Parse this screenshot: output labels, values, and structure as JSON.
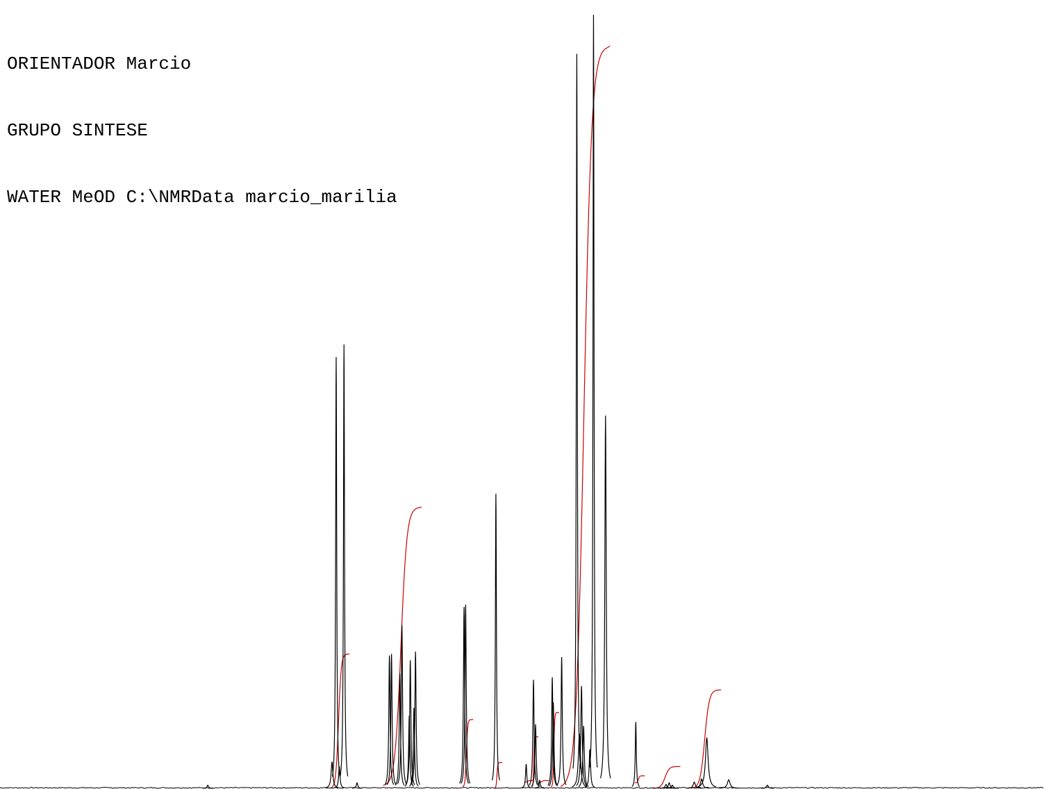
{
  "header": {
    "line1": "ORIENTADOR Marcio",
    "line2": "GRUPO SINTESE",
    "line3": "WATER MeOD C:\\NMRData marcio_marilia"
  },
  "colors": {
    "spectrum": "#000000",
    "integral": "#cc0000",
    "background": "#ffffff"
  },
  "chart_data": {
    "type": "line",
    "title": "",
    "xlabel": "",
    "ylabel": "",
    "xlim": [
      0,
      1
    ],
    "ylim": [
      0,
      1
    ],
    "grid": false,
    "legend": "none",
    "series": [
      {
        "peaks": [
          {
            "x": 0.199,
            "h": 0.004,
            "w": 0.0008
          },
          {
            "x": 0.318,
            "h": 0.034,
            "w": 0.001
          },
          {
            "x": 0.322,
            "h": 0.552,
            "w": 0.0006
          },
          {
            "x": 0.325,
            "h": 0.028,
            "w": 0.0008
          },
          {
            "x": 0.3295,
            "h": 0.568,
            "w": 0.0006
          },
          {
            "x": 0.342,
            "h": 0.007,
            "w": 0.0008
          },
          {
            "x": 0.373,
            "h": 0.17,
            "w": 0.0007
          },
          {
            "x": 0.375,
            "h": 0.172,
            "w": 0.0007
          },
          {
            "x": 0.383,
            "h": 0.147,
            "w": 0.0007
          },
          {
            "x": 0.385,
            "h": 0.209,
            "w": 0.0007
          },
          {
            "x": 0.392,
            "h": 0.093,
            "w": 0.0007
          },
          {
            "x": 0.393,
            "h": 0.164,
            "w": 0.0007
          },
          {
            "x": 0.3965,
            "h": 0.103,
            "w": 0.0007
          },
          {
            "x": 0.398,
            "h": 0.175,
            "w": 0.0007
          },
          {
            "x": 0.4445,
            "h": 0.232,
            "w": 0.0007
          },
          {
            "x": 0.446,
            "h": 0.235,
            "w": 0.0007
          },
          {
            "x": 0.475,
            "h": 0.377,
            "w": 0.0006
          },
          {
            "x": 0.504,
            "h": 0.031,
            "w": 0.0007
          },
          {
            "x": 0.511,
            "h": 0.139,
            "w": 0.0007
          },
          {
            "x": 0.513,
            "h": 0.082,
            "w": 0.0007
          },
          {
            "x": 0.517,
            "h": 0.01,
            "w": 0.0007
          },
          {
            "x": 0.529,
            "h": 0.142,
            "w": 0.0007
          },
          {
            "x": 0.53,
            "h": 0.11,
            "w": 0.0007
          },
          {
            "x": 0.538,
            "h": 0.168,
            "w": 0.0007
          },
          {
            "x": 0.5525,
            "h": 0.94,
            "w": 0.0006
          },
          {
            "x": 0.555,
            "h": 0.07,
            "w": 0.0012
          },
          {
            "x": 0.557,
            "h": 0.131,
            "w": 0.0008
          },
          {
            "x": 0.559,
            "h": 0.08,
            "w": 0.0008
          },
          {
            "x": 0.565,
            "h": 0.05,
            "w": 0.0008
          },
          {
            "x": 0.5685,
            "h": 0.99,
            "w": 0.0006
          },
          {
            "x": 0.58,
            "h": 0.477,
            "w": 0.0008
          },
          {
            "x": 0.609,
            "h": 0.085,
            "w": 0.0006
          },
          {
            "x": 0.638,
            "h": 0.005,
            "w": 0.001
          },
          {
            "x": 0.641,
            "h": 0.007,
            "w": 0.001
          },
          {
            "x": 0.644,
            "h": 0.004,
            "w": 0.001
          },
          {
            "x": 0.665,
            "h": 0.008,
            "w": 0.0012
          },
          {
            "x": 0.672,
            "h": 0.012,
            "w": 0.0012
          },
          {
            "x": 0.677,
            "h": 0.065,
            "w": 0.0015
          },
          {
            "x": 0.698,
            "h": 0.011,
            "w": 0.0015
          },
          {
            "x": 0.735,
            "h": 0.004,
            "w": 0.001
          }
        ]
      },
      {
        "integrals": [
          {
            "x1": 0.3165,
            "x2": 0.332,
            "y1": 0.0,
            "y2": 0.172
          },
          {
            "x1": 0.367,
            "x2": 0.401,
            "y1": 0.003,
            "y2": 0.36
          },
          {
            "x1": 0.443,
            "x2": 0.4505,
            "y1": 0.002,
            "y2": 0.088
          },
          {
            "x1": 0.4735,
            "x2": 0.4785,
            "y1": 0.0,
            "y2": 0.033
          },
          {
            "x1": 0.5025,
            "x2": 0.5085,
            "y1": 0.008,
            "y2": 0.01
          },
          {
            "x1": 0.5095,
            "x2": 0.513,
            "y1": 0.002,
            "y2": 0.066
          },
          {
            "x1": 0.516,
            "x2": 0.523,
            "y1": 0.008,
            "y2": 0.01
          },
          {
            "x1": 0.528,
            "x2": 0.533,
            "y1": 0.002,
            "y2": 0.097
          },
          {
            "x1": 0.537,
            "x2": 0.5815,
            "y1": 0.0,
            "y2": 0.95
          },
          {
            "x1": 0.608,
            "x2": 0.615,
            "y1": 0.007,
            "y2": 0.016
          },
          {
            "x1": 0.625,
            "x2": 0.649,
            "y1": 0.0,
            "y2": 0.028
          },
          {
            "x1": 0.662,
            "x2": 0.688,
            "y1": 0.0,
            "y2": 0.126
          }
        ]
      }
    ]
  }
}
